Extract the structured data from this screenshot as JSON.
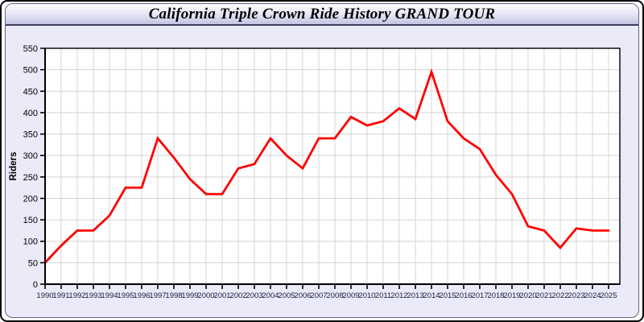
{
  "header": {
    "title": "California Triple Crown Ride History GRAND TOUR"
  },
  "colors": {
    "line": "#ff0000",
    "panel_background": "#eaeaf8",
    "plot_background": "#ffffff",
    "grid": "#d4d4d4",
    "axis": "#000000",
    "x_tick_text": "#1c1c3c",
    "y_tick_text": "#000000"
  },
  "chart_data": {
    "type": "line",
    "title": "California Triple Crown Ride History GRAND TOUR",
    "xlabel": "",
    "ylabel": "Riders",
    "ylim": [
      0,
      550
    ],
    "ytick_step": 50,
    "grid": true,
    "legend_position": "none",
    "categories": [
      1990,
      1991,
      1992,
      1993,
      1994,
      1995,
      1996,
      1997,
      1998,
      1999,
      2000,
      2001,
      2002,
      2003,
      2004,
      2005,
      2006,
      2007,
      2008,
      2009,
      2010,
      2011,
      2012,
      2013,
      2014,
      2015,
      2016,
      2017,
      2018,
      2019,
      2020,
      2021,
      2022,
      2023,
      2024,
      2025
    ],
    "series": [
      {
        "name": "Riders",
        "color": "#ff0000",
        "values": [
          50,
          90,
          125,
          125,
          160,
          225,
          225,
          340,
          295,
          245,
          210,
          210,
          270,
          280,
          340,
          300,
          270,
          340,
          340,
          390,
          370,
          380,
          410,
          385,
          495,
          380,
          340,
          315,
          255,
          210,
          135,
          125,
          85,
          130,
          125,
          125
        ]
      }
    ]
  }
}
